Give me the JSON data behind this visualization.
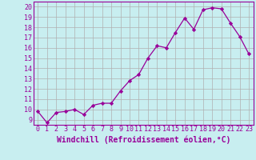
{
  "x": [
    0,
    1,
    2,
    3,
    4,
    5,
    6,
    7,
    8,
    9,
    10,
    11,
    12,
    13,
    14,
    15,
    16,
    17,
    18,
    19,
    20,
    21,
    22,
    23
  ],
  "y": [
    9.8,
    8.7,
    9.7,
    9.8,
    10.0,
    9.5,
    10.4,
    10.6,
    10.6,
    11.8,
    12.8,
    13.4,
    15.0,
    16.2,
    16.0,
    17.5,
    18.9,
    17.8,
    19.7,
    19.9,
    19.8,
    18.4,
    17.1,
    15.4
  ],
  "line_color": "#990099",
  "marker": "D",
  "marker_size": 2.2,
  "background_color": "#c8eef0",
  "grid_color": "#b0b0b0",
  "xlabel": "Windchill (Refroidissement éolien,°C)",
  "xlim": [
    -0.5,
    23.5
  ],
  "ylim": [
    8.5,
    20.5
  ],
  "yticks": [
    9,
    10,
    11,
    12,
    13,
    14,
    15,
    16,
    17,
    18,
    19,
    20
  ],
  "xticks": [
    0,
    1,
    2,
    3,
    4,
    5,
    6,
    7,
    8,
    9,
    10,
    11,
    12,
    13,
    14,
    15,
    16,
    17,
    18,
    19,
    20,
    21,
    22,
    23
  ],
  "tick_fontsize": 6.0,
  "xlabel_fontsize": 7.0,
  "line_width": 0.9
}
